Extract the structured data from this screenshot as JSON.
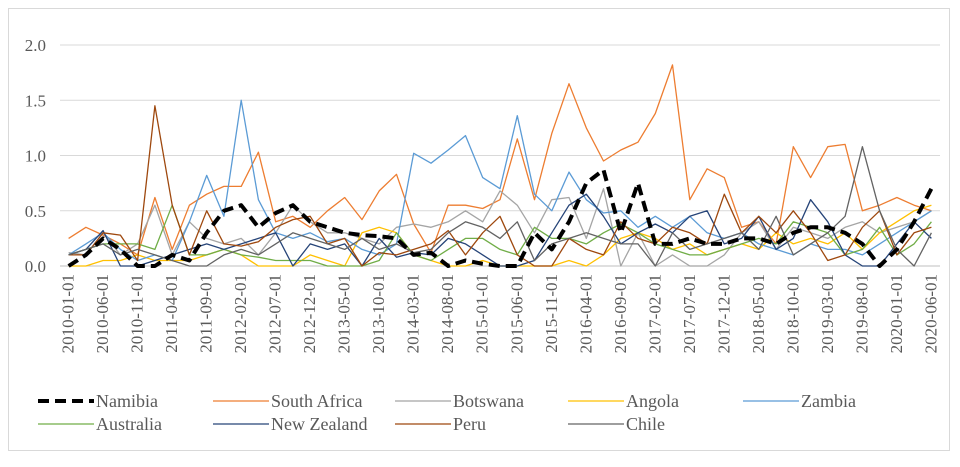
{
  "chart_data": {
    "type": "line",
    "title": "",
    "xlabel": "",
    "ylabel": "",
    "ylim": [
      0,
      2.0
    ],
    "yticks": [
      "0.0",
      "0.5",
      "1.0",
      "1.5",
      "2.0"
    ],
    "grid": "horizontal",
    "legend_placement": "bottom",
    "x": [
      "2010-01-01",
      "2010-03-01",
      "2010-06-01",
      "2010-08-01",
      "2010-11-01",
      "2011-01-01",
      "2011-04-01",
      "2011-06-01",
      "2011-09-01",
      "2011-11-01",
      "2012-02-01",
      "2012-04-01",
      "2012-07-01",
      "2012-09-01",
      "2012-12-01",
      "2013-02-01",
      "2013-05-01",
      "2013-07-01",
      "2013-10-01",
      "2013-12-01",
      "2014-03-01",
      "2014-05-01",
      "2014-08-01",
      "2014-10-01",
      "2015-01-01",
      "2015-03-01",
      "2015-06-01",
      "2015-08-01",
      "2015-11-01",
      "2016-01-01",
      "2016-04-01",
      "2016-06-01",
      "2016-09-01",
      "2016-11-01",
      "2017-02-01",
      "2017-04-01",
      "2017-07-01",
      "2017-09-01",
      "2017-12-01",
      "2018-02-01",
      "2018-05-01",
      "2018-07-01",
      "2018-10-01",
      "2018-12-01",
      "2019-03-01",
      "2019-05-01",
      "2019-08-01",
      "2019-10-01",
      "2020-01-01",
      "2020-03-01",
      "2020-06-01"
    ],
    "x_tick_labels": [
      "2010-01-01",
      "2010-06-01",
      "2010-11-01",
      "2011-04-01",
      "2011-09-01",
      "2012-02-01",
      "2012-07-01",
      "2012-12-01",
      "2013-05-01",
      "2013-10-01",
      "2014-03-01",
      "2014-08-01",
      "2015-01-01",
      "2015-06-01",
      "2015-11-01",
      "2016-04-01",
      "2016-09-01",
      "2017-02-01",
      "2017-07-01",
      "2017-12-01",
      "2018-05-01",
      "2018-10-01",
      "2019-03-01",
      "2019-08-01",
      "2020-01-01",
      "2020-06-01"
    ],
    "series": [
      {
        "name": "Namibia",
        "color": "#000000",
        "dashed": true,
        "width": 4,
        "values": [
          0.0,
          0.1,
          0.25,
          0.15,
          0.0,
          0.0,
          0.1,
          0.05,
          0.3,
          0.5,
          0.55,
          0.35,
          0.48,
          0.55,
          0.4,
          0.35,
          0.3,
          0.28,
          0.27,
          0.25,
          0.1,
          0.12,
          0.0,
          0.05,
          0.02,
          0.0,
          0.0,
          0.3,
          0.15,
          0.4,
          0.75,
          0.87,
          0.3,
          0.75,
          0.2,
          0.2,
          0.25,
          0.2,
          0.2,
          0.25,
          0.25,
          0.2,
          0.3,
          0.35,
          0.35,
          0.3,
          0.2,
          0.0,
          0.15,
          0.4,
          0.7
        ]
      },
      {
        "name": "South Africa",
        "color": "#ed7d31",
        "values": [
          0.25,
          0.35,
          0.28,
          0.2,
          0.1,
          0.62,
          0.15,
          0.55,
          0.65,
          0.72,
          0.72,
          1.03,
          0.4,
          0.45,
          0.35,
          0.5,
          0.62,
          0.42,
          0.68,
          0.83,
          0.38,
          0.12,
          0.55,
          0.55,
          0.52,
          0.6,
          1.15,
          0.6,
          1.2,
          1.65,
          1.25,
          0.95,
          1.05,
          1.12,
          1.38,
          1.82,
          0.6,
          0.88,
          0.8,
          0.35,
          0.4,
          0.2,
          1.08,
          0.8,
          1.08,
          1.1,
          0.5,
          0.55,
          0.62,
          0.55,
          0.5
        ]
      },
      {
        "name": "Botswana",
        "color": "#a5a5a5",
        "values": [
          0.12,
          0.1,
          0.3,
          0.1,
          0.2,
          0.55,
          0.1,
          0.4,
          0.25,
          0.2,
          0.25,
          0.1,
          0.3,
          0.55,
          0.4,
          0.3,
          0.3,
          0.25,
          0.2,
          0.35,
          0.38,
          0.35,
          0.4,
          0.5,
          0.4,
          0.68,
          0.55,
          0.3,
          0.6,
          0.62,
          0.25,
          0.7,
          0.0,
          0.3,
          0.0,
          0.1,
          0.0,
          0.0,
          0.1,
          0.3,
          0.4,
          0.15,
          0.35,
          0.3,
          0.25,
          0.35,
          0.4,
          0.3,
          0.35,
          0.4,
          0.5
        ]
      },
      {
        "name": "Angola",
        "color": "#ffc000",
        "values": [
          0.0,
          0.0,
          0.05,
          0.05,
          0.1,
          0.05,
          0.05,
          0.05,
          0.1,
          0.15,
          0.1,
          0.0,
          0.0,
          0.0,
          0.1,
          0.05,
          0.0,
          0.3,
          0.35,
          0.3,
          0.1,
          0.05,
          0.0,
          0.0,
          0.05,
          0.0,
          0.0,
          0.0,
          0.0,
          0.05,
          0.0,
          0.1,
          0.25,
          0.3,
          0.25,
          0.15,
          0.2,
          0.1,
          0.15,
          0.2,
          0.15,
          0.3,
          0.2,
          0.25,
          0.2,
          0.3,
          0.15,
          0.3,
          0.4,
          0.5,
          0.55
        ]
      },
      {
        "name": "Zambia",
        "color": "#5b9bd5",
        "values": [
          0.1,
          0.2,
          0.3,
          0.15,
          0.05,
          0.1,
          0.05,
          0.4,
          0.82,
          0.45,
          1.5,
          0.6,
          0.3,
          0.25,
          0.3,
          0.22,
          0.25,
          0.15,
          0.1,
          0.2,
          1.02,
          0.93,
          1.05,
          1.18,
          0.8,
          0.7,
          1.36,
          0.65,
          0.5,
          0.85,
          0.6,
          0.48,
          0.5,
          0.35,
          0.45,
          0.35,
          0.45,
          0.3,
          0.25,
          0.3,
          0.2,
          0.15,
          0.1,
          0.2,
          0.15,
          0.15,
          0.1,
          0.2,
          0.3,
          0.4,
          0.5
        ]
      },
      {
        "name": "Australia",
        "color": "#70ad47",
        "values": [
          0.1,
          0.15,
          0.2,
          0.2,
          0.2,
          0.15,
          0.55,
          0.1,
          0.1,
          0.15,
          0.1,
          0.08,
          0.05,
          0.05,
          0.05,
          0.0,
          0.0,
          0.0,
          0.05,
          0.3,
          0.1,
          0.05,
          0.15,
          0.25,
          0.25,
          0.15,
          0.1,
          0.35,
          0.25,
          0.25,
          0.2,
          0.3,
          0.38,
          0.3,
          0.2,
          0.15,
          0.1,
          0.1,
          0.15,
          0.2,
          0.25,
          0.2,
          0.4,
          0.35,
          0.3,
          0.1,
          0.15,
          0.35,
          0.1,
          0.2,
          0.4
        ]
      },
      {
        "name": "New Zealand",
        "color": "#264478",
        "values": [
          0.1,
          0.15,
          0.32,
          0.0,
          0.0,
          0.05,
          0.1,
          0.15,
          0.2,
          0.15,
          0.2,
          0.25,
          0.3,
          0.0,
          0.2,
          0.15,
          0.2,
          0.0,
          0.25,
          0.08,
          0.12,
          0.1,
          0.25,
          0.2,
          0.1,
          0.0,
          0.0,
          0.05,
          0.3,
          0.55,
          0.65,
          0.45,
          0.2,
          0.3,
          0.38,
          0.3,
          0.45,
          0.5,
          0.2,
          0.25,
          0.45,
          0.15,
          0.25,
          0.6,
          0.4,
          0.1,
          0.0,
          0.0,
          0.2,
          0.4,
          0.25
        ]
      },
      {
        "name": "Peru",
        "color": "#9e480e",
        "values": [
          0.1,
          0.1,
          0.3,
          0.28,
          0.05,
          1.45,
          0.55,
          0.1,
          0.5,
          0.2,
          0.18,
          0.22,
          0.35,
          0.42,
          0.45,
          0.2,
          0.25,
          0.0,
          0.12,
          0.1,
          0.15,
          0.2,
          0.32,
          0.1,
          0.3,
          0.45,
          0.1,
          0.0,
          0.0,
          0.25,
          0.15,
          0.1,
          0.4,
          0.25,
          0.2,
          0.35,
          0.3,
          0.2,
          0.65,
          0.3,
          0.45,
          0.3,
          0.5,
          0.3,
          0.05,
          0.1,
          0.35,
          0.5,
          0.1,
          0.3,
          0.35
        ]
      },
      {
        "name": "Chile",
        "color": "#636363",
        "values": [
          0.1,
          0.15,
          0.2,
          0.1,
          0.15,
          0.1,
          0.05,
          0.0,
          0.0,
          0.1,
          0.15,
          0.1,
          0.2,
          0.3,
          0.25,
          0.2,
          0.15,
          0.25,
          0.15,
          0.2,
          0.12,
          0.15,
          0.3,
          0.4,
          0.35,
          0.25,
          0.4,
          0.05,
          0.2,
          0.25,
          0.3,
          0.25,
          0.2,
          0.2,
          0.0,
          0.3,
          0.15,
          0.2,
          0.25,
          0.3,
          0.15,
          0.45,
          0.1,
          0.2,
          0.3,
          0.45,
          1.08,
          0.5,
          0.15,
          0.0,
          0.3
        ]
      }
    ]
  }
}
